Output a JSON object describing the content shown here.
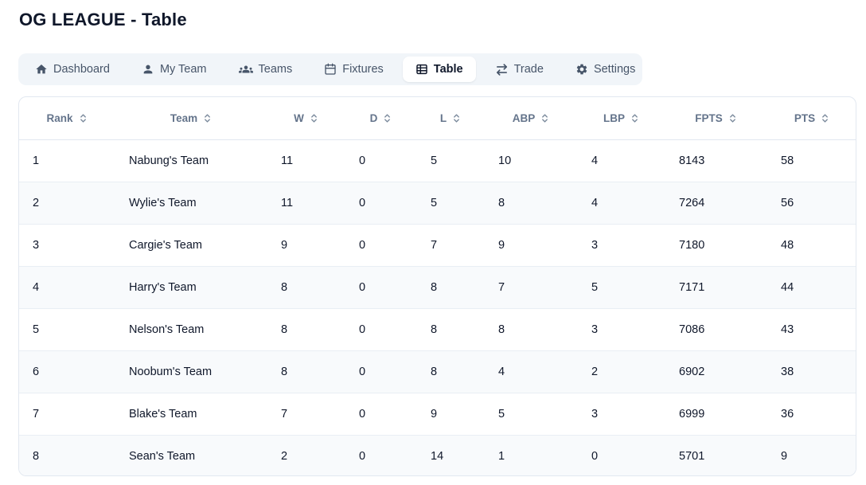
{
  "page": {
    "title": "OG LEAGUE - Table"
  },
  "nav": {
    "tabs": [
      {
        "label": "Dashboard",
        "icon": "home",
        "active": false
      },
      {
        "label": "My Team",
        "icon": "user",
        "active": false
      },
      {
        "label": "Teams",
        "icon": "users",
        "active": false
      },
      {
        "label": "Fixtures",
        "icon": "calendar",
        "active": false
      },
      {
        "label": "Table",
        "icon": "table",
        "active": true
      },
      {
        "label": "Trade",
        "icon": "trade",
        "active": false
      },
      {
        "label": "Settings",
        "icon": "gear",
        "active": false
      }
    ]
  },
  "table": {
    "columns": [
      {
        "key": "rank",
        "label": "Rank",
        "sortable": true
      },
      {
        "key": "team",
        "label": "Team",
        "sortable": true
      },
      {
        "key": "w",
        "label": "W",
        "sortable": true
      },
      {
        "key": "d",
        "label": "D",
        "sortable": true
      },
      {
        "key": "l",
        "label": "L",
        "sortable": true
      },
      {
        "key": "abp",
        "label": "ABP",
        "sortable": true
      },
      {
        "key": "lbp",
        "label": "LBP",
        "sortable": true
      },
      {
        "key": "fpts",
        "label": "FPTS",
        "sortable": true
      },
      {
        "key": "pts",
        "label": "PTS",
        "sortable": true
      }
    ],
    "rows": [
      {
        "rank": "1",
        "team": "Nabung's Team",
        "w": "11",
        "d": "0",
        "l": "5",
        "abp": "10",
        "lbp": "4",
        "fpts": "8143",
        "pts": "58"
      },
      {
        "rank": "2",
        "team": "Wylie's Team",
        "w": "11",
        "d": "0",
        "l": "5",
        "abp": "8",
        "lbp": "4",
        "fpts": "7264",
        "pts": "56"
      },
      {
        "rank": "3",
        "team": "Cargie's Team",
        "w": "9",
        "d": "0",
        "l": "7",
        "abp": "9",
        "lbp": "3",
        "fpts": "7180",
        "pts": "48"
      },
      {
        "rank": "4",
        "team": "Harry's Team",
        "w": "8",
        "d": "0",
        "l": "8",
        "abp": "7",
        "lbp": "5",
        "fpts": "7171",
        "pts": "44"
      },
      {
        "rank": "5",
        "team": "Nelson's Team",
        "w": "8",
        "d": "0",
        "l": "8",
        "abp": "8",
        "lbp": "3",
        "fpts": "7086",
        "pts": "43"
      },
      {
        "rank": "6",
        "team": "Noobum's Team",
        "w": "8",
        "d": "0",
        "l": "8",
        "abp": "4",
        "lbp": "2",
        "fpts": "6902",
        "pts": "38"
      },
      {
        "rank": "7",
        "team": "Blake's Team",
        "w": "7",
        "d": "0",
        "l": "9",
        "abp": "5",
        "lbp": "3",
        "fpts": "6999",
        "pts": "36"
      },
      {
        "rank": "8",
        "team": "Sean's Team",
        "w": "2",
        "d": "0",
        "l": "14",
        "abp": "1",
        "lbp": "0",
        "fpts": "5701",
        "pts": "9"
      }
    ]
  },
  "colors": {
    "title_text": "#0f172a",
    "nav_background": "#f1f5f9",
    "nav_inactive_text": "#475569",
    "active_tab_background": "#ffffff",
    "active_tab_text": "#0f172a",
    "card_border": "#e2e8f0",
    "header_text": "#64748b",
    "cell_text": "#0f172a",
    "row_alt_background": "#f8fafc",
    "row_divider": "#e9eef4"
  }
}
